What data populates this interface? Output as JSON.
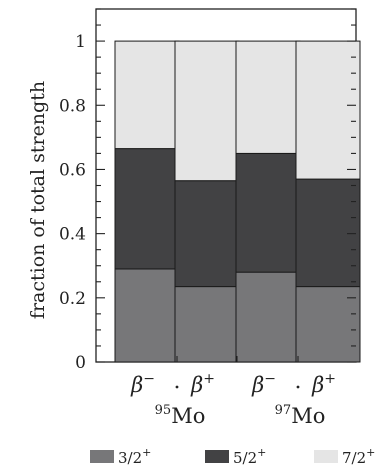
{
  "chart_data": {
    "type": "bar",
    "stacked": true,
    "title": "",
    "xlabel": "",
    "ylabel": "fraction of total strength",
    "ylim": [
      0,
      1.1
    ],
    "yticks": [
      "0",
      "0.2",
      "0.4",
      "0.6",
      "0.8",
      "1"
    ],
    "grid": false,
    "legend_position": "bottom",
    "bar_labels": [
      "β−",
      "β+",
      "β−",
      "β+"
    ],
    "groups": [
      {
        "label": "95Mo",
        "mass": "95",
        "element": "Mo"
      },
      {
        "label": "97Mo",
        "mass": "97",
        "element": "Mo"
      }
    ],
    "series": [
      {
        "name": "3/2+",
        "color": "#777779",
        "values": [
          0.29,
          0.235,
          0.28,
          0.235
        ]
      },
      {
        "name": "5/2+",
        "color": "#424244",
        "values": [
          0.375,
          0.33,
          0.37,
          0.335
        ]
      },
      {
        "name": "7/2+",
        "color": "#e5e5e5",
        "values": [
          0.335,
          0.435,
          0.35,
          0.43
        ]
      }
    ]
  }
}
